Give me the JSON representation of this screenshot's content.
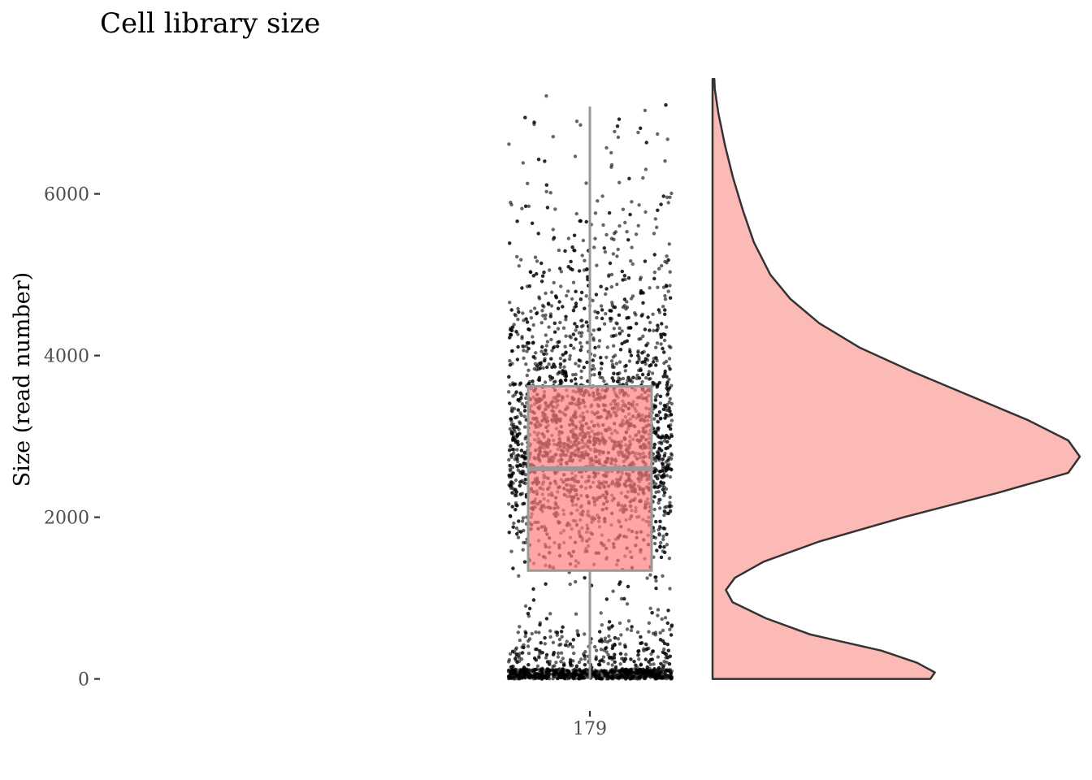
{
  "chart_data": {
    "type": "boxplot",
    "title": "Cell library size",
    "xlabel": "",
    "ylabel": "Size (read number)",
    "categories": [
      "179"
    ],
    "y_ticks": [
      0,
      2000,
      4000,
      6000
    ],
    "ylim": [
      -380,
      7600
    ],
    "grid": false,
    "legend": "none",
    "box": {
      "category": "179",
      "q1": 1340,
      "median": 2600,
      "q3": 3620,
      "whisker_low": 0,
      "whisker_high": 7080,
      "fill": "#ff7f7f",
      "fill_opacity": 0.7,
      "outline_color": "#999999"
    },
    "density": {
      "category": "179",
      "points": [
        [
          0,
          0.49
        ],
        [
          80,
          0.5
        ],
        [
          200,
          0.46
        ],
        [
          350,
          0.38
        ],
        [
          550,
          0.22
        ],
        [
          750,
          0.12
        ],
        [
          950,
          0.045
        ],
        [
          1100,
          0.03
        ],
        [
          1250,
          0.05
        ],
        [
          1450,
          0.115
        ],
        [
          1700,
          0.24
        ],
        [
          2000,
          0.43
        ],
        [
          2300,
          0.64
        ],
        [
          2550,
          0.8
        ],
        [
          2750,
          0.826
        ],
        [
          2950,
          0.8
        ],
        [
          3200,
          0.71
        ],
        [
          3500,
          0.58
        ],
        [
          3800,
          0.45
        ],
        [
          4100,
          0.33
        ],
        [
          4400,
          0.24
        ],
        [
          4700,
          0.175
        ],
        [
          5000,
          0.13
        ],
        [
          5400,
          0.093
        ],
        [
          5800,
          0.068
        ],
        [
          6200,
          0.046
        ],
        [
          6600,
          0.028
        ],
        [
          7000,
          0.013
        ],
        [
          7300,
          0.005
        ],
        [
          7420,
          0.004
        ]
      ],
      "fill": "#f8766d",
      "fill_opacity": 0.5,
      "outline_color": "#333333"
    },
    "points_color": "#000000",
    "points_opacity": 0.6
  }
}
